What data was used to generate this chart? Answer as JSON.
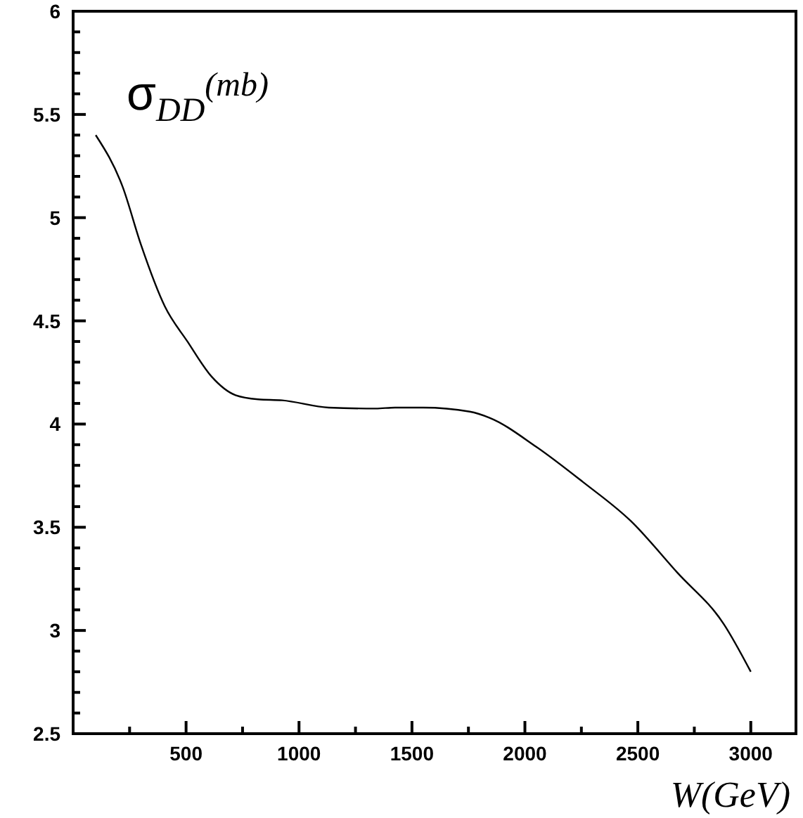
{
  "chart_data": {
    "type": "line",
    "title": "σ$_{DD}$$^{(mb)}$",
    "xlabel": "W(GeV)",
    "x": [
      100,
      219,
      300,
      406,
      506,
      613,
      719,
      819,
      925,
      1131,
      1340,
      1425,
      1550,
      1756,
      1844,
      2050,
      2256,
      2469,
      2675,
      2881,
      3000
    ],
    "series": [
      {
        "color": "#000000",
        "values": [
          5.4,
          5.15,
          4.87,
          4.57,
          4.4,
          4.23,
          4.14,
          4.12,
          4.115,
          4.08,
          4.075,
          4.08,
          4.08,
          4.06,
          4.03,
          3.89,
          3.72,
          3.53,
          3.28,
          3.03,
          2.8
        ]
      }
    ],
    "xlim": [
      0,
      3200
    ],
    "ylim": [
      2.5,
      6
    ],
    "xticks": [
      {
        "value": 250,
        "label": null
      },
      500,
      {
        "value": 750,
        "label": null
      },
      1000,
      {
        "value": 1250,
        "label": null
      },
      1500,
      {
        "value": 1750,
        "label": null
      },
      2000,
      {
        "value": 2250,
        "label": null
      },
      2500,
      {
        "value": 2750,
        "label": null
      },
      3000
    ],
    "yticks": [
      2.5,
      {
        "value": 2.6,
        "label": null
      },
      {
        "value": 2.7,
        "label": null
      },
      {
        "value": 2.8,
        "label": null
      },
      {
        "value": 2.9,
        "label": null
      },
      3,
      {
        "value": 3.1,
        "label": null
      },
      {
        "value": 3.2,
        "label": null
      },
      {
        "value": 3.3,
        "label": null
      },
      {
        "value": 3.4,
        "label": null
      },
      3.5,
      {
        "value": 3.6,
        "label": null
      },
      {
        "value": 3.7,
        "label": null
      },
      {
        "value": 3.8,
        "label": null
      },
      {
        "value": 3.9,
        "label": null
      },
      4,
      {
        "value": 4.1,
        "label": null
      },
      {
        "value": 4.2,
        "label": null
      },
      {
        "value": 4.3,
        "label": null
      },
      {
        "value": 4.4,
        "label": null
      },
      4.5,
      {
        "value": 4.6,
        "label": null
      },
      {
        "value": 4.7,
        "label": null
      },
      {
        "value": 4.8,
        "label": null
      },
      {
        "value": 4.9,
        "label": null
      },
      5,
      {
        "value": 5.1,
        "label": null
      },
      {
        "value": 5.2,
        "label": null
      },
      {
        "value": 5.3,
        "label": null
      },
      {
        "value": 5.4,
        "label": null
      },
      5.5,
      {
        "value": 5.6,
        "label": null
      },
      {
        "value": 5.7,
        "label": null
      },
      {
        "value": 5.8,
        "label": null
      },
      {
        "value": 5.9,
        "label": null
      },
      6
    ],
    "grid": false,
    "marker": "none",
    "line_style": "solid"
  }
}
